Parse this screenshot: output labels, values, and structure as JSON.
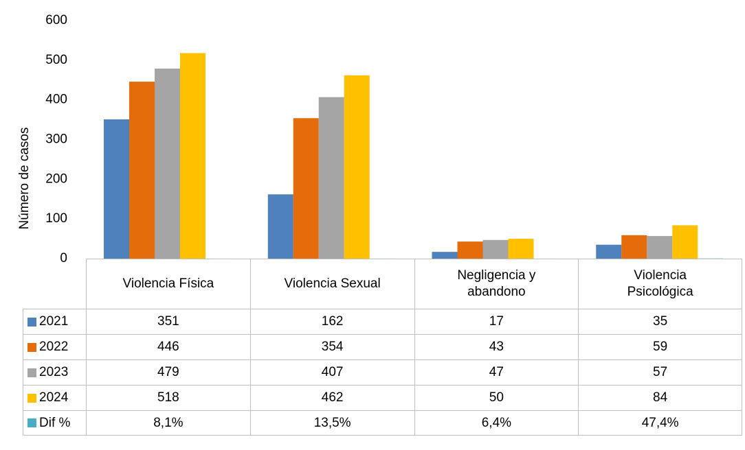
{
  "chart_data": {
    "type": "bar",
    "y_label": "Número de casos",
    "categories": [
      "Violencia Física",
      "Violencia Sexual",
      "Negligencia y abandono",
      "Violencia Psicológica"
    ],
    "series": [
      {
        "name": "2021",
        "color": "#4f81bd",
        "values": [
          351,
          162,
          17,
          35
        ]
      },
      {
        "name": "2022",
        "color": "#e46c0a",
        "values": [
          446,
          354,
          43,
          59
        ]
      },
      {
        "name": "2023",
        "color": "#a5a5a5",
        "values": [
          479,
          407,
          47,
          57
        ]
      },
      {
        "name": "2024",
        "color": "#ffc000",
        "values": [
          518,
          462,
          50,
          84
        ]
      },
      {
        "name": "Dif %",
        "color": "#4bacc6",
        "values": [
          0.081,
          0.135,
          0.064,
          0.474
        ],
        "value_labels": [
          "8,1%",
          "13,5%",
          "6,4%",
          "47,4%"
        ]
      }
    ],
    "ylim": [
      0,
      600
    ],
    "yticks": [
      0,
      100,
      200,
      300,
      400,
      500,
      600
    ],
    "grid": false
  }
}
